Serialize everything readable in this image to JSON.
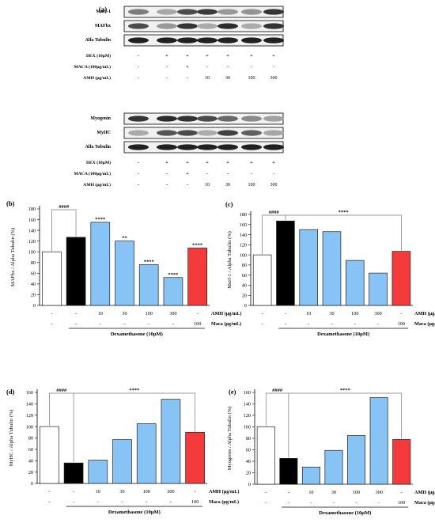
{
  "panel_a": {
    "label": "(a)",
    "top_block": {
      "blots": [
        "Murf-1",
        "MAFbx",
        "Alfa Tubulin"
      ],
      "conditions": [
        {
          "label": "DEX (10μM)",
          "values": [
            "-",
            "+",
            "+",
            "+",
            "+",
            "+",
            "+"
          ]
        },
        {
          "label": "MACA (100μg/mL)",
          "values": [
            "-",
            "-",
            "+",
            "-",
            "-",
            "-",
            "-"
          ]
        },
        {
          "label": "AMH (μg/mL)",
          "values": [
            "-",
            "-",
            "-",
            "10",
            "30",
            "100",
            "300"
          ]
        }
      ]
    },
    "bottom_block": {
      "blots": [
        "Myogenin",
        "MyHC",
        "Alfa Tubulin"
      ],
      "conditions": [
        {
          "label": "DEX (10μM)",
          "values": [
            "-",
            "+",
            "+",
            "+",
            "+",
            "+",
            "+"
          ]
        },
        {
          "label": "MACA (100μg/mL)",
          "values": [
            "-",
            "-",
            "+",
            "-",
            "-",
            "-",
            "-"
          ]
        },
        {
          "label": "AMH (μg/mL)",
          "values": [
            "-",
            "-",
            "-",
            "10",
            "30",
            "100",
            "300"
          ]
        }
      ]
    }
  },
  "chart_data": [
    {
      "panel": "(b)",
      "type": "bar",
      "ylabel": "MAFbx / Alpha Tubulin (%)",
      "ylim": [
        0,
        180
      ],
      "yticks": [
        0,
        20,
        40,
        60,
        80,
        100,
        120,
        140,
        160,
        180
      ],
      "values": [
        100,
        127,
        155,
        120,
        76,
        52,
        107
      ],
      "colors": [
        "#ffffff",
        "#000000",
        "#87c3f5",
        "#87c3f5",
        "#87c3f5",
        "#87c3f5",
        "#f43a3a"
      ],
      "stars": [
        "",
        "",
        "****",
        "**",
        "****",
        "****",
        "****"
      ],
      "bracket": {
        "text": "####",
        "from": 0,
        "to": 1
      }
    },
    {
      "panel": "(c)",
      "type": "bar",
      "ylabel": "Murf-1 / Alpha Tubulin (%)",
      "ylim": [
        0,
        180
      ],
      "yticks": [
        0,
        20,
        40,
        60,
        80,
        100,
        120,
        140,
        160,
        180
      ],
      "values": [
        100,
        167,
        150,
        146,
        89,
        64,
        107
      ],
      "colors": [
        "#ffffff",
        "#000000",
        "#87c3f5",
        "#87c3f5",
        "#87c3f5",
        "#87c3f5",
        "#f43a3a"
      ],
      "stars": [
        "",
        "",
        "",
        "",
        "",
        "",
        ""
      ],
      "bracket": {
        "text": "####",
        "from": 0,
        "to": 1
      },
      "span": {
        "text": "****",
        "from": 1,
        "to": 6
      }
    },
    {
      "panel": "(d)",
      "type": "bar",
      "ylabel": "MyHC / Alpha Tubulin (%)",
      "ylim": [
        0,
        160
      ],
      "yticks": [
        0,
        20,
        40,
        60,
        80,
        100,
        120,
        140,
        160
      ],
      "values": [
        100,
        36,
        41,
        77,
        105,
        148,
        90
      ],
      "colors": [
        "#ffffff",
        "#000000",
        "#87c3f5",
        "#87c3f5",
        "#87c3f5",
        "#87c3f5",
        "#f43a3a"
      ],
      "stars": [
        "",
        "",
        "",
        "",
        "",
        "",
        ""
      ],
      "bracket": {
        "text": "####",
        "from": 0,
        "to": 1
      },
      "span": {
        "text": "****",
        "from": 1,
        "to": 6
      }
    },
    {
      "panel": "(e)",
      "type": "bar",
      "ylabel": "Myogenin / Alpha Tubulin (%)",
      "ylim": [
        0,
        160
      ],
      "yticks": [
        0,
        20,
        40,
        60,
        80,
        100,
        120,
        140,
        160
      ],
      "values": [
        100,
        45,
        30,
        59,
        85,
        151,
        78
      ],
      "colors": [
        "#ffffff",
        "#000000",
        "#87c3f5",
        "#87c3f5",
        "#87c3f5",
        "#87c3f5",
        "#f43a3a"
      ],
      "stars": [
        "",
        "",
        "",
        "",
        "",
        "",
        ""
      ],
      "bracket": {
        "text": "####",
        "from": 0,
        "to": 1
      },
      "span": {
        "text": "****",
        "from": 1,
        "to": 6
      }
    }
  ],
  "bar_table": {
    "amh_label": "AMH (μg/mL)",
    "amh_values": [
      "-",
      "-",
      "10",
      "30",
      "100",
      "300",
      "-"
    ],
    "maca_label": "Maca (μg/mL)",
    "maca_values": [
      "-",
      "-",
      "-",
      "-",
      "-",
      "-",
      "100"
    ],
    "dex_label": "Dexamethasone (10μM)"
  }
}
